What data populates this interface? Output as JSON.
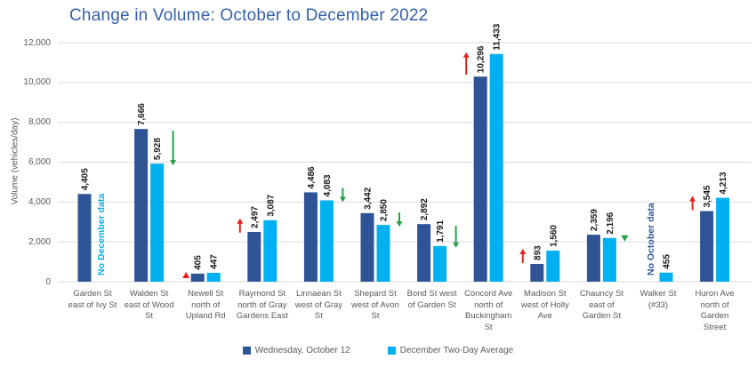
{
  "title": "Change in Volume: October to December 2022",
  "y_axis": {
    "label": "Volume (vehicles/day)",
    "tick_labels": [
      "0",
      "2,000",
      "4,000",
      "6,000",
      "8,000",
      "10,000",
      "12,000"
    ],
    "tick_step": 2000
  },
  "legend": {
    "items": [
      {
        "label": "Wednesday, October 12",
        "color": "#2E5496"
      },
      {
        "label": "December Two-Day Average",
        "color": "#00B0F0"
      }
    ]
  },
  "colors": {
    "october_bar": "#2E5496",
    "december_bar": "#00B0F0",
    "increase_arrow": "#E0231C",
    "decrease_arrow": "#26A04A",
    "title_text": "#3560A8",
    "axis_text": "#595959",
    "gridline": "#D9D9D9",
    "note_no_december": "#00AEE8",
    "note_no_october": "#2E5496"
  },
  "chart_data": {
    "type": "bar",
    "title": "Change in Volume: October to December 2022",
    "xlabel": "",
    "ylabel": "Volume (vehicles/day)",
    "ylim": [
      0,
      12000
    ],
    "grid": true,
    "legend_position": "bottom",
    "series_names": [
      "Wednesday, October 12",
      "December Two-Day Average"
    ],
    "categories": [
      "Garden St east of Ivy St",
      "Walden St east of Wood St",
      "Newell St north of Upland Rd",
      "Raymond St north of Gray Gardens East",
      "Linnaean St west of Gray St",
      "Shepard St west of Avon St",
      "Bond St west of Garden St",
      "Concord Ave north of Buckingham St",
      "Madison St west of Holly Ave",
      "Chauncy St east of Garden St",
      "Walker St (#33)",
      "Huron Ave north of Garden Street"
    ],
    "points": [
      {
        "label_lines": [
          "Garden St",
          "east of Ivy St"
        ],
        "oct": 4405,
        "oct_label": "4,405",
        "dec": null,
        "dec_label": null,
        "note": "No December data",
        "note_style": "light",
        "annotation": null
      },
      {
        "label_lines": [
          "Walden St",
          "east of Wood",
          "St"
        ],
        "oct": 7666,
        "oct_label": "7,666",
        "dec": 5928,
        "dec_label": "5,928",
        "note": null,
        "annotation": {
          "shape": "arrow",
          "direction": "down"
        }
      },
      {
        "label_lines": [
          "Newell St",
          "north of",
          "Upland Rd"
        ],
        "oct": 405,
        "oct_label": "405",
        "dec": 447,
        "dec_label": "447",
        "note": null,
        "annotation": {
          "shape": "triangle",
          "direction": "up"
        }
      },
      {
        "label_lines": [
          "Raymond St",
          "north of Gray",
          "Gardens East"
        ],
        "oct": 2497,
        "oct_label": "2,497",
        "dec": 3087,
        "dec_label": "3,087",
        "note": null,
        "annotation": {
          "shape": "arrow",
          "direction": "up"
        }
      },
      {
        "label_lines": [
          "Linnaean St",
          "west of Gray",
          "St"
        ],
        "oct": 4486,
        "oct_label": "4,486",
        "dec": 4083,
        "dec_label": "4,083",
        "note": null,
        "annotation": {
          "shape": "arrow",
          "direction": "down"
        }
      },
      {
        "label_lines": [
          "Shepard St",
          "west of Avon",
          "St"
        ],
        "oct": 3442,
        "oct_label": "3,442",
        "dec": 2850,
        "dec_label": "2,850",
        "note": null,
        "annotation": {
          "shape": "arrow",
          "direction": "down"
        }
      },
      {
        "label_lines": [
          "Bond St west",
          "of Garden St"
        ],
        "oct": 2892,
        "oct_label": "2,892",
        "dec": 1791,
        "dec_label": "1,791",
        "note": null,
        "annotation": {
          "shape": "arrow",
          "direction": "down"
        }
      },
      {
        "label_lines": [
          "Concord Ave",
          "north of",
          "Buckingham",
          "St"
        ],
        "oct": 10296,
        "oct_label": "10,296",
        "dec": 11433,
        "dec_label": "11,433",
        "note": null,
        "annotation": {
          "shape": "arrow",
          "direction": "up"
        }
      },
      {
        "label_lines": [
          "Madison St",
          "west of Holly",
          "Ave"
        ],
        "oct": 893,
        "oct_label": "893",
        "dec": 1560,
        "dec_label": "1,560",
        "note": null,
        "annotation": {
          "shape": "arrow",
          "direction": "up"
        }
      },
      {
        "label_lines": [
          "Chauncy St",
          "east of",
          "Garden St"
        ],
        "oct": 2359,
        "oct_label": "2,359",
        "dec": 2196,
        "dec_label": "2,196",
        "note": null,
        "annotation": {
          "shape": "triangle",
          "direction": "down"
        }
      },
      {
        "label_lines": [
          "Walker St",
          "(#33)"
        ],
        "oct": null,
        "oct_label": null,
        "dec": 455,
        "dec_label": "455",
        "note": "No October data",
        "note_style": "dark",
        "annotation": null
      },
      {
        "label_lines": [
          "Huron Ave",
          "north of",
          "Garden",
          "Street"
        ],
        "oct": 3545,
        "oct_label": "3,545",
        "dec": 4213,
        "dec_label": "4,213",
        "note": null,
        "annotation": {
          "shape": "arrow",
          "direction": "up"
        }
      }
    ]
  }
}
